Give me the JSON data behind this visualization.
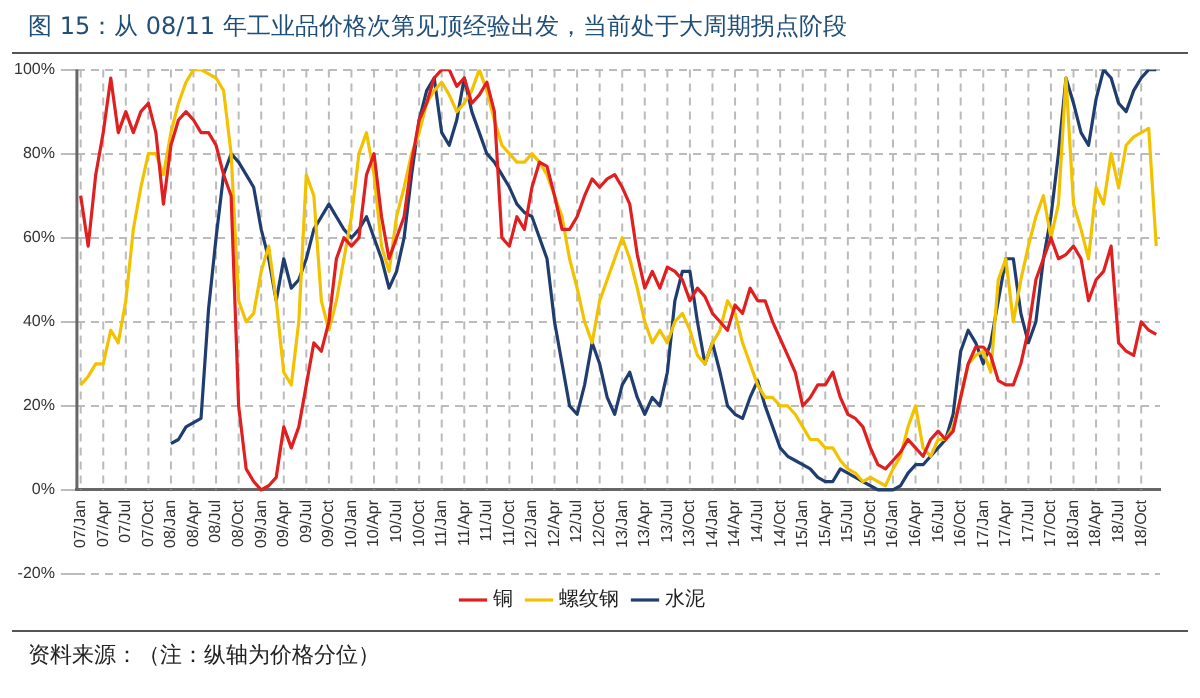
{
  "chart_data": {
    "type": "line",
    "title": "图 15：从 08/11 年工业品价格次第见顶经验出发，当前处于大周期拐点阶段",
    "annotations": [
      "资料来源：（注：纵轴为价格分位）"
    ],
    "categories": [
      "07/Jan",
      null,
      null,
      "07/Apr",
      null,
      null,
      "07/Jul",
      null,
      null,
      "07/Oct",
      null,
      null,
      "08/Jan",
      null,
      null,
      "08/Apr",
      null,
      null,
      "08/Jul",
      null,
      null,
      "08/Oct",
      null,
      null,
      "09/Jan",
      null,
      null,
      "09/Apr",
      null,
      null,
      "09/Jul",
      null,
      null,
      "09/Oct",
      null,
      null,
      "10/Jan",
      null,
      null,
      "10/Apr",
      null,
      null,
      "10/Jul",
      null,
      null,
      "10/Oct",
      null,
      null,
      "11/Jan",
      null,
      null,
      "11/Apr",
      null,
      null,
      "11/Jul",
      null,
      null,
      "11/Oct",
      null,
      null,
      "12/Jan",
      null,
      null,
      "12/Apr",
      null,
      null,
      "12/Jul",
      null,
      null,
      "12/Oct",
      null,
      null,
      "13/Jan",
      null,
      null,
      "13/Apr",
      null,
      null,
      "13/Jul",
      null,
      null,
      "13/Oct",
      null,
      null,
      "14/Jan",
      null,
      null,
      "14/Apr",
      null,
      null,
      "14/Jul",
      null,
      null,
      "14/Oct",
      null,
      null,
      "15/Jan",
      null,
      null,
      "15/Apr",
      null,
      null,
      "15/Jul",
      null,
      null,
      "15/Oct",
      null,
      null,
      "16/Jan",
      null,
      null,
      "16/Apr",
      null,
      null,
      "16/Jul",
      null,
      null,
      "16/Oct",
      null,
      null,
      "17/Jan",
      null,
      null,
      "17/Apr",
      null,
      null,
      "17/Jul",
      null,
      null,
      "17/Oct",
      null,
      null,
      "18/Jan",
      null,
      null,
      "18/Apr",
      null,
      null,
      "18/Jul",
      null,
      null,
      "18/Oct",
      null,
      null
    ],
    "series": [
      {
        "name": "铜",
        "color": "#e02020",
        "values": [
          70,
          58,
          75,
          85,
          98,
          85,
          90,
          85,
          90,
          92,
          85,
          68,
          82,
          88,
          90,
          88,
          85,
          85,
          82,
          75,
          70,
          20,
          5,
          2,
          0,
          1,
          3,
          15,
          10,
          15,
          25,
          35,
          33,
          40,
          55,
          60,
          58,
          60,
          75,
          80,
          65,
          55,
          60,
          65,
          78,
          88,
          92,
          98,
          100,
          100,
          96,
          98,
          92,
          94,
          97,
          90,
          60,
          58,
          65,
          62,
          72,
          78,
          77,
          70,
          62,
          62,
          65,
          70,
          74,
          72,
          74,
          75,
          72,
          68,
          56,
          48,
          52,
          48,
          53,
          52,
          50,
          45,
          48,
          46,
          42,
          40,
          38,
          44,
          42,
          48,
          45,
          45,
          40,
          36,
          32,
          28,
          20,
          22,
          25,
          25,
          28,
          22,
          18,
          17,
          15,
          10,
          6,
          5,
          7,
          9,
          12,
          10,
          8,
          12,
          14,
          12,
          14,
          22,
          30,
          34,
          34,
          32,
          26,
          25,
          25,
          30,
          38,
          50,
          55,
          60,
          55,
          56,
          58,
          55,
          45,
          50,
          52,
          58,
          35,
          33,
          32,
          40,
          38,
          37
        ]
      },
      {
        "name": "螺纹钢",
        "color": "#f2c200",
        "values": [
          25,
          27,
          30,
          30,
          38,
          35,
          45,
          62,
          72,
          80,
          80,
          75,
          85,
          92,
          97,
          100,
          100,
          99,
          98,
          95,
          80,
          45,
          40,
          42,
          52,
          58,
          45,
          28,
          25,
          40,
          75,
          70,
          45,
          38,
          45,
          55,
          65,
          80,
          85,
          75,
          58,
          52,
          65,
          72,
          80,
          85,
          92,
          95,
          97,
          94,
          90,
          92,
          95,
          100,
          95,
          88,
          82,
          80,
          78,
          78,
          80,
          78,
          75,
          70,
          65,
          55,
          48,
          40,
          35,
          45,
          50,
          55,
          60,
          55,
          48,
          40,
          35,
          38,
          35,
          40,
          42,
          38,
          32,
          30,
          35,
          38,
          45,
          42,
          35,
          30,
          25,
          22,
          22,
          20,
          20,
          18,
          15,
          12,
          12,
          10,
          10,
          7,
          5,
          4,
          2,
          3,
          2,
          1,
          5,
          8,
          15,
          20,
          10,
          8,
          12,
          12,
          15,
          22,
          30,
          32,
          33,
          28,
          50,
          55,
          40,
          50,
          58,
          65,
          70,
          60,
          68,
          98,
          68,
          62,
          55,
          72,
          68,
          80,
          72,
          82,
          84,
          85,
          86,
          58
        ]
      },
      {
        "name": "水泥",
        "color": "#1f3d6e",
        "values": [
          null,
          null,
          null,
          null,
          null,
          null,
          null,
          null,
          null,
          null,
          null,
          null,
          11,
          12,
          15,
          16,
          17,
          43,
          60,
          75,
          80,
          78,
          75,
          72,
          62,
          55,
          45,
          55,
          48,
          50,
          55,
          62,
          65,
          68,
          65,
          62,
          60,
          62,
          65,
          60,
          55,
          48,
          52,
          60,
          75,
          88,
          95,
          98,
          85,
          82,
          88,
          98,
          90,
          85,
          80,
          78,
          75,
          72,
          68,
          66,
          65,
          60,
          55,
          40,
          30,
          20,
          18,
          25,
          35,
          30,
          22,
          18,
          25,
          28,
          22,
          18,
          22,
          20,
          28,
          45,
          52,
          52,
          40,
          30,
          35,
          28,
          20,
          18,
          17,
          22,
          26,
          20,
          15,
          10,
          8,
          7,
          6,
          5,
          3,
          2,
          2,
          5,
          4,
          3,
          2,
          1,
          0,
          0,
          0,
          1,
          4,
          6,
          6,
          8,
          10,
          12,
          18,
          33,
          38,
          35,
          30,
          35,
          45,
          55,
          55,
          42,
          35,
          40,
          55,
          65,
          80,
          98,
          92,
          85,
          82,
          93,
          100,
          98,
          92,
          90,
          95,
          98,
          100,
          100
        ]
      }
    ],
    "ylim": [
      -20,
      100
    ],
    "yticks": [
      {
        "value": -20,
        "label": "-20%"
      },
      {
        "value": 0,
        "label": "0%"
      },
      {
        "value": 20,
        "label": "20%"
      },
      {
        "value": 40,
        "label": "40%"
      },
      {
        "value": 60,
        "label": "60%"
      },
      {
        "value": 80,
        "label": "80%"
      },
      {
        "value": 100,
        "label": "100%"
      }
    ],
    "grid": true,
    "legend": "bottom",
    "marker": "none",
    "line_style": "solid"
  }
}
